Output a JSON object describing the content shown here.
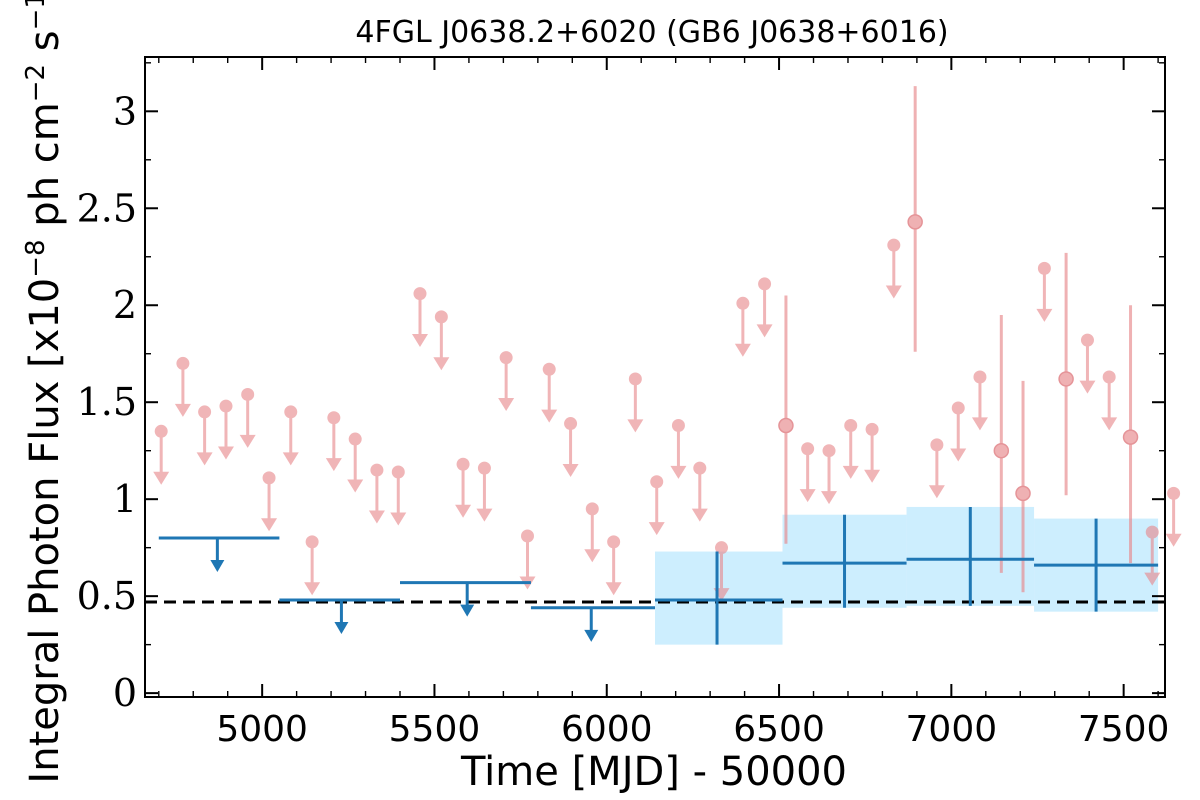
{
  "chart_data": {
    "type": "scatter",
    "title": "4FGL J0638.2+6020 (GB6 J0638+6016)",
    "xlabel": "Time [MJD] - 50000",
    "ylabel_parts": [
      "Integral Photon Flux [x10",
      "−8",
      " ph cm",
      "−2",
      " s",
      "−1",
      "]"
    ],
    "xlim": [
      4660,
      7620
    ],
    "ylim": [
      -0.02,
      3.28
    ],
    "x_ticks": [
      5000,
      5500,
      6000,
      6500,
      7000,
      7500
    ],
    "x_tick_labels": [
      "5000",
      "5500",
      "6000",
      "6500",
      "7000",
      "7500"
    ],
    "y_ticks": [
      0,
      0.5,
      1,
      1.5,
      2,
      2.5,
      3
    ],
    "y_tick_labels": [
      "0",
      "0.5",
      "1",
      "1.5",
      "2",
      "2.5",
      "3"
    ],
    "reference_line": {
      "y": 0.47,
      "style": "dashed",
      "color": "#000000"
    },
    "colors": {
      "short_bins": "#e8888c",
      "long_bins": "#1f77b4",
      "long_band": "#cdeefe"
    },
    "short_bins_upper_limits": [
      {
        "x": 4707,
        "y": 1.35
      },
      {
        "x": 4770,
        "y": 1.7
      },
      {
        "x": 4833,
        "y": 1.45
      },
      {
        "x": 4895,
        "y": 1.48
      },
      {
        "x": 4958,
        "y": 1.54
      },
      {
        "x": 5020,
        "y": 1.11
      },
      {
        "x": 5083,
        "y": 1.45
      },
      {
        "x": 5145,
        "y": 0.78
      },
      {
        "x": 5208,
        "y": 1.42
      },
      {
        "x": 5270,
        "y": 1.31
      },
      {
        "x": 5333,
        "y": 1.15
      },
      {
        "x": 5395,
        "y": 1.14
      },
      {
        "x": 5458,
        "y": 2.06
      },
      {
        "x": 5520,
        "y": 1.94
      },
      {
        "x": 5583,
        "y": 1.18
      },
      {
        "x": 5645,
        "y": 1.16
      },
      {
        "x": 5708,
        "y": 1.73
      },
      {
        "x": 5770,
        "y": 0.81
      },
      {
        "x": 5833,
        "y": 1.67
      },
      {
        "x": 5895,
        "y": 1.39
      },
      {
        "x": 5958,
        "y": 0.95
      },
      {
        "x": 6020,
        "y": 0.78
      },
      {
        "x": 6083,
        "y": 1.62
      },
      {
        "x": 6145,
        "y": 1.09
      },
      {
        "x": 6208,
        "y": 1.38
      },
      {
        "x": 6270,
        "y": 1.16
      },
      {
        "x": 6333,
        "y": 0.75
      },
      {
        "x": 6395,
        "y": 2.01
      },
      {
        "x": 6458,
        "y": 2.11
      },
      {
        "x": 6583,
        "y": 1.26
      },
      {
        "x": 6645,
        "y": 1.25
      },
      {
        "x": 6708,
        "y": 1.38
      },
      {
        "x": 6770,
        "y": 1.36
      },
      {
        "x": 6833,
        "y": 2.31
      },
      {
        "x": 6958,
        "y": 1.28
      },
      {
        "x": 7020,
        "y": 1.47
      },
      {
        "x": 7083,
        "y": 1.63
      },
      {
        "x": 7270,
        "y": 2.19
      },
      {
        "x": 7395,
        "y": 1.82
      },
      {
        "x": 7458,
        "y": 1.63
      },
      {
        "x": 7583,
        "y": 0.83
      },
      {
        "x": 7645,
        "y": 1.03
      }
    ],
    "short_bins_detections": [
      {
        "x": 6520,
        "y": 1.38,
        "ylow": 0.77,
        "yhigh": 2.05
      },
      {
        "x": 6895,
        "y": 2.43,
        "ylow": 1.76,
        "yhigh": 3.13
      },
      {
        "x": 7145,
        "y": 1.25,
        "ylow": 0.62,
        "yhigh": 1.95
      },
      {
        "x": 7208,
        "y": 1.03,
        "ylow": 0.52,
        "yhigh": 1.61
      },
      {
        "x": 7333,
        "y": 1.62,
        "ylow": 1.02,
        "yhigh": 2.27
      },
      {
        "x": 7520,
        "y": 1.32,
        "ylow": 0.67,
        "yhigh": 2.0
      }
    ],
    "long_bins_upper_limits": [
      {
        "x": 4870,
        "xlow": 4700,
        "xhigh": 5050,
        "y": 0.8
      },
      {
        "x": 5230,
        "xlow": 5050,
        "xhigh": 5400,
        "y": 0.48
      },
      {
        "x": 5595,
        "xlow": 5400,
        "xhigh": 5780,
        "y": 0.57
      },
      {
        "x": 5955,
        "xlow": 5780,
        "xhigh": 6140,
        "y": 0.44
      }
    ],
    "long_bins_detections": [
      {
        "x": 6320,
        "xlow": 6140,
        "xhigh": 6510,
        "y": 0.48,
        "ylow": 0.25,
        "yhigh": 0.73
      },
      {
        "x": 6690,
        "xlow": 6510,
        "xhigh": 6870,
        "y": 0.67,
        "ylow": 0.44,
        "yhigh": 0.92
      },
      {
        "x": 7055,
        "xlow": 6870,
        "xhigh": 7240,
        "y": 0.69,
        "ylow": 0.45,
        "yhigh": 0.96
      },
      {
        "x": 7420,
        "xlow": 7240,
        "xhigh": 7600,
        "y": 0.66,
        "ylow": 0.42,
        "yhigh": 0.9
      }
    ]
  }
}
